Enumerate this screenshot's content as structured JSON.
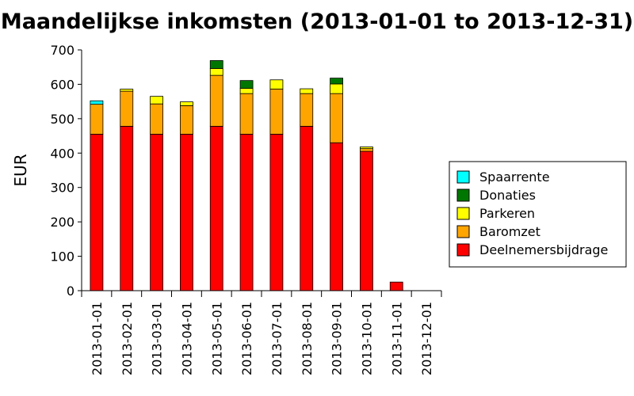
{
  "chart_data": {
    "type": "bar",
    "stacked": true,
    "title": "Maandelijkse inkomsten (2013-01-01 to 2013-12-31)",
    "xlabel": "",
    "ylabel": "EUR",
    "ylim": [
      0,
      700
    ],
    "yticks": [
      0,
      100,
      200,
      300,
      400,
      500,
      600,
      700
    ],
    "grid": false,
    "legend_position": "right",
    "categories": [
      "2013-01-01",
      "2013-02-01",
      "2013-03-01",
      "2013-04-01",
      "2013-05-01",
      "2013-06-01",
      "2013-07-01",
      "2013-08-01",
      "2013-09-01",
      "2013-10-01",
      "2013-11-01",
      "2013-12-01"
    ],
    "series": [
      {
        "name": "Deelnemersbijdrage",
        "color": "#ff0000",
        "values": [
          455,
          478,
          455,
          455,
          478,
          455,
          455,
          478,
          430,
          405,
          25,
          0
        ]
      },
      {
        "name": "Baromzet",
        "color": "#ffa500",
        "values": [
          87,
          102,
          88,
          83,
          148,
          118,
          131,
          95,
          143,
          8,
          0,
          0
        ]
      },
      {
        "name": "Parkeren",
        "color": "#ffff00",
        "values": [
          0,
          6,
          22,
          11,
          20,
          15,
          27,
          14,
          28,
          5,
          0,
          0
        ]
      },
      {
        "name": "Donaties",
        "color": "#007700",
        "values": [
          0,
          0,
          0,
          0,
          23,
          23,
          0,
          0,
          17,
          0,
          0,
          0
        ]
      },
      {
        "name": "Spaarrente",
        "color": "#00ffff",
        "values": [
          10,
          0,
          0,
          0,
          0,
          0,
          0,
          0,
          0,
          0,
          0,
          0
        ]
      }
    ],
    "legend_order": [
      "Spaarrente",
      "Donaties",
      "Parkeren",
      "Baromzet",
      "Deelnemersbijdrage"
    ]
  }
}
